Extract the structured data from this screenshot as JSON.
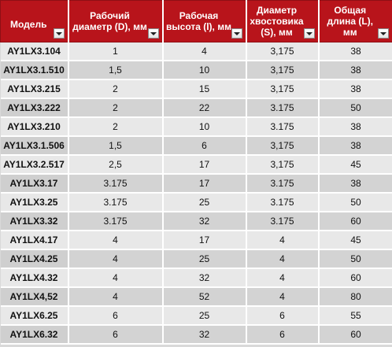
{
  "table": {
    "headers": [
      {
        "label": "Модель",
        "name": "header-model"
      },
      {
        "label": "Рабочий диаметр (D), мм",
        "name": "header-working-diameter"
      },
      {
        "label": "Рабочая высота (l), мм",
        "name": "header-working-height"
      },
      {
        "label": "Диаметр хвостовика (S), мм",
        "name": "header-shank-diameter"
      },
      {
        "label": "Общая длина (L), мм",
        "name": "header-total-length"
      }
    ],
    "rows": [
      [
        "AY1LX3.104",
        "1",
        "4",
        "3,175",
        "38"
      ],
      [
        "AY1LX3.1.510",
        "1,5",
        "10",
        "3,175",
        "38"
      ],
      [
        "AY1LX3.215",
        "2",
        "15",
        "3,175",
        "38"
      ],
      [
        "AY1LX3.222",
        "2",
        "22",
        "3.175",
        "50"
      ],
      [
        "AY1LX3.210",
        "2",
        "10",
        "3.175",
        "38"
      ],
      [
        "AY1LX3.1.506",
        "1,5",
        "6",
        "3,175",
        "38"
      ],
      [
        "AY1LX3.2.517",
        "2,5",
        "17",
        "3,175",
        "45"
      ],
      [
        "AY1LX3.17",
        "3.175",
        "17",
        "3.175",
        "38"
      ],
      [
        "AY1LX3.25",
        "3.175",
        "25",
        "3.175",
        "50"
      ],
      [
        "AY1LX3.32",
        "3.175",
        "32",
        "3.175",
        "60"
      ],
      [
        "AY1LX4.17",
        "4",
        "17",
        "4",
        "45"
      ],
      [
        "AY1LX4.25",
        "4",
        "25",
        "4",
        "50"
      ],
      [
        "AY1LX4.32",
        "4",
        "32",
        "4",
        "60"
      ],
      [
        "AY1LX4,52",
        "4",
        "52",
        "4",
        "80"
      ],
      [
        "AY1LX6.25",
        "6",
        "25",
        "6",
        "55"
      ],
      [
        "AY1LX6.32",
        "6",
        "32",
        "6",
        "60"
      ]
    ]
  },
  "colors": {
    "header_bg": "#b8141b",
    "header_text": "#ffffff",
    "row_odd": "#e8e8e8",
    "row_even": "#d3d3d3"
  },
  "icons": {
    "filter": "chevron-down-icon"
  }
}
